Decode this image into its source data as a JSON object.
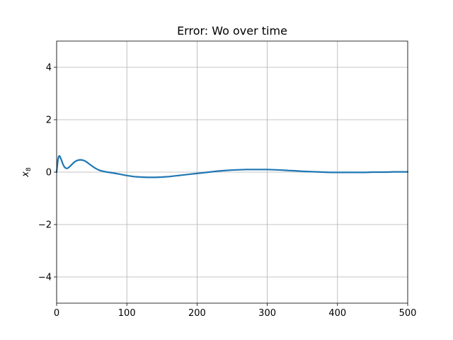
{
  "chart_data": {
    "type": "line",
    "title": "Error: Wo over time",
    "xlabel": "",
    "ylabel_base": "x",
    "ylabel_sub": "8",
    "xlim": [
      0,
      500
    ],
    "ylim": [
      -5,
      5
    ],
    "xticks": [
      0,
      100,
      200,
      300,
      400,
      500
    ],
    "yticks": [
      -4,
      -2,
      0,
      2,
      4
    ],
    "xtick_labels": [
      "0",
      "100",
      "200",
      "300",
      "400",
      "500"
    ],
    "ytick_labels": [
      "−4",
      "−2",
      "0",
      "2",
      "4"
    ],
    "grid": true,
    "series": [
      {
        "color": "#1f77b4",
        "x": [
          0,
          1,
          2,
          3,
          4,
          5,
          7,
          9,
          11,
          13,
          15,
          17,
          19,
          22,
          25,
          28,
          31,
          34,
          37,
          40,
          43,
          46,
          50,
          55,
          60,
          65,
          70,
          80,
          90,
          100,
          110,
          120,
          130,
          140,
          150,
          160,
          170,
          180,
          190,
          200,
          210,
          220,
          230,
          240,
          250,
          260,
          270,
          280,
          290,
          300,
          310,
          320,
          330,
          340,
          350,
          360,
          370,
          380,
          390,
          400,
          410,
          420,
          430,
          440,
          450,
          460,
          470,
          480,
          490,
          500
        ],
        "y": [
          0.0,
          0.25,
          0.5,
          0.6,
          0.62,
          0.58,
          0.45,
          0.3,
          0.2,
          0.15,
          0.14,
          0.17,
          0.22,
          0.3,
          0.38,
          0.43,
          0.46,
          0.47,
          0.46,
          0.43,
          0.38,
          0.32,
          0.24,
          0.15,
          0.08,
          0.04,
          0.01,
          -0.03,
          -0.08,
          -0.13,
          -0.17,
          -0.19,
          -0.2,
          -0.2,
          -0.19,
          -0.17,
          -0.14,
          -0.11,
          -0.08,
          -0.05,
          -0.02,
          0.01,
          0.04,
          0.06,
          0.08,
          0.09,
          0.1,
          0.1,
          0.1,
          0.1,
          0.09,
          0.08,
          0.06,
          0.05,
          0.03,
          0.02,
          0.01,
          0.0,
          -0.01,
          -0.01,
          -0.01,
          -0.01,
          -0.01,
          -0.01,
          0.0,
          0.0,
          0.0,
          0.01,
          0.01,
          0.01
        ]
      }
    ]
  }
}
